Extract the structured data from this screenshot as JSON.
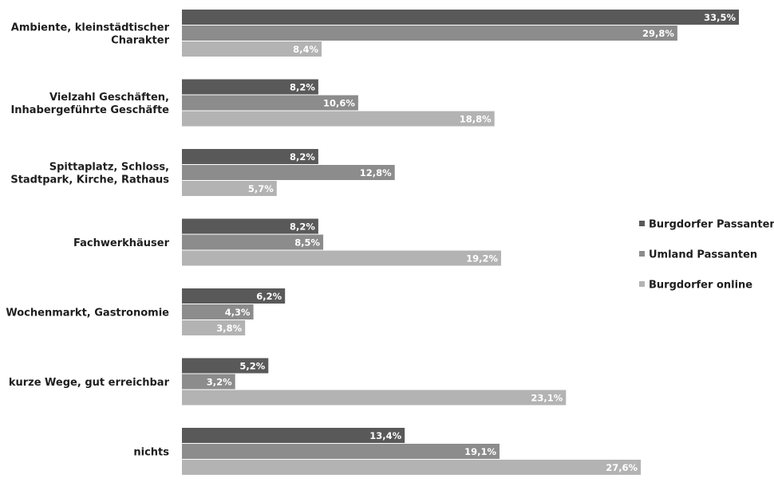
{
  "chart_data": {
    "type": "bar",
    "orientation": "horizontal",
    "categories": [
      "Ambiente, kleinstädtischer Charakter",
      "Vielzahl Geschäften, Inhabergeführte Geschäfte",
      "Spittaplatz, Schloss, Stadtpark, Kirche, Rathaus",
      "Fachwerkhäuser",
      "Wochenmarkt, Gastronomie",
      "kurze Wege, gut erreichbar",
      "nichts"
    ],
    "category_lines": [
      [
        "Ambiente, kleinstädtischer",
        "Charakter"
      ],
      [
        "Vielzahl Geschäften,",
        "Inhabergeführte Geschäfte"
      ],
      [
        "Spittaplatz, Schloss,",
        "Stadtpark, Kirche, Rathaus"
      ],
      [
        "Fachwerkhäuser"
      ],
      [
        "Wochenmarkt, Gastronomie"
      ],
      [
        "kurze Wege, gut erreichbar"
      ],
      [
        "nichts"
      ]
    ],
    "series": [
      {
        "name": "Burgdorfer Passanten",
        "values": [
          33.5,
          8.2,
          8.2,
          8.2,
          6.2,
          5.2,
          13.4
        ],
        "labels": [
          "33,5%",
          "8,2%",
          "8,2%",
          "8,2%",
          "6,2%",
          "5,2%",
          "13,4%"
        ]
      },
      {
        "name": "Umland Passanten",
        "values": [
          29.8,
          10.6,
          12.8,
          8.5,
          4.3,
          3.2,
          19.1
        ],
        "labels": [
          "29,8%",
          "10,6%",
          "12,8%",
          "8,5%",
          "4,3%",
          "3,2%",
          "19,1%"
        ]
      },
      {
        "name": "Burgdorfer online",
        "values": [
          8.4,
          18.8,
          5.7,
          19.2,
          3.8,
          23.1,
          27.6
        ],
        "labels": [
          "8,4%",
          "18,8%",
          "5,7%",
          "19,2%",
          "3,8%",
          "23,1%",
          "27,6%"
        ]
      }
    ],
    "colors": [
      "#595959",
      "#8c8c8c",
      "#b3b3b3"
    ],
    "xlim": [
      0,
      33.5
    ],
    "grid": false,
    "legend_position": "right"
  }
}
